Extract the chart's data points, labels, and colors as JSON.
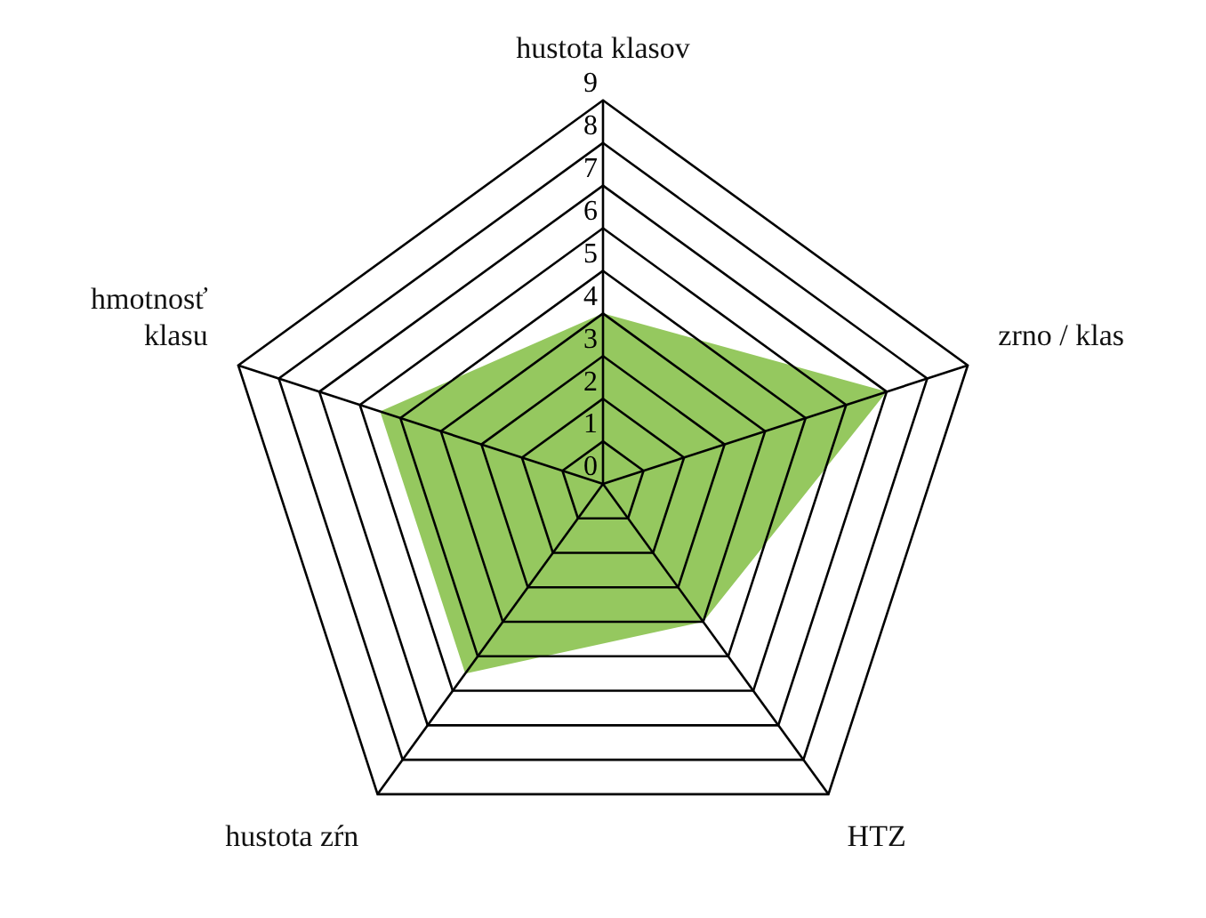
{
  "chart_data": {
    "type": "radar",
    "categories": [
      "hustota klasov",
      "zrno / klas",
      "HTZ",
      "hustota zŕn",
      "hmotnosť\nklasu"
    ],
    "series": [
      {
        "color": "#95c85f",
        "values": [
          4,
          7,
          4,
          5.5,
          5.5
        ]
      }
    ],
    "ylim": [
      0,
      9
    ],
    "yticks": [
      0,
      1,
      2,
      3,
      4,
      5,
      6,
      7,
      8,
      9
    ],
    "grid": true,
    "legend": false
  }
}
